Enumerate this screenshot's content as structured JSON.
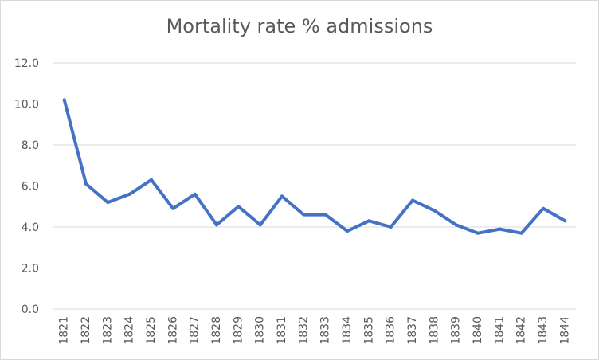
{
  "chart_data": {
    "type": "line",
    "title": "Mortality rate % admissions",
    "xlabel": "",
    "ylabel": "",
    "ylim": [
      0,
      12
    ],
    "ytick_labels": [
      "0.0",
      "2.0",
      "4.0",
      "6.0",
      "8.0",
      "10.0",
      "12.0"
    ],
    "grid": true,
    "legend": "none",
    "categories": [
      "1821",
      "1822",
      "1823",
      "1824",
      "1825",
      "1826",
      "1827",
      "1828",
      "1829",
      "1830",
      "1831",
      "1832",
      "1833",
      "1834",
      "1835",
      "1836",
      "1837",
      "1838",
      "1839",
      "1840",
      "1841",
      "1842",
      "1843",
      "1844"
    ],
    "series": [
      {
        "values": [
          10.2,
          6.1,
          5.2,
          5.6,
          6.3,
          4.9,
          5.6,
          4.1,
          5.0,
          4.1,
          5.5,
          4.6,
          4.6,
          3.8,
          4.3,
          4.0,
          5.3,
          4.8,
          4.1,
          3.7,
          3.9,
          3.7,
          4.9,
          4.3
        ],
        "color": "#4472c4"
      }
    ],
    "colors": {
      "grid": "#d9d9d9",
      "tick_text": "#595959",
      "title_text": "#595959",
      "line": "#4472c4"
    }
  }
}
